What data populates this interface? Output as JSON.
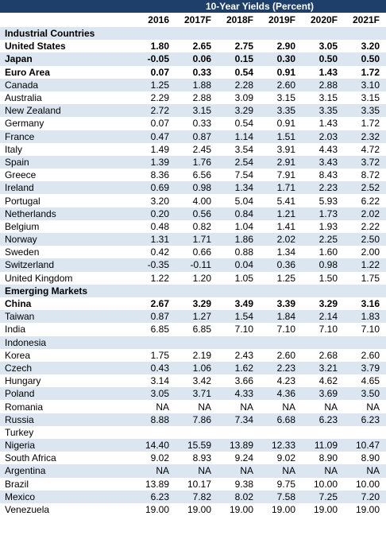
{
  "table": {
    "title": "10-Year Yields (Percent)",
    "columns": [
      "2016",
      "2017F",
      "2018F",
      "2019F",
      "2020F",
      "2021F"
    ],
    "rows": [
      {
        "label": "Industrial Countries",
        "section": true,
        "values": []
      },
      {
        "label": "United States",
        "bold": true,
        "values": [
          "1.80",
          "2.65",
          "2.75",
          "2.90",
          "3.05",
          "3.20"
        ]
      },
      {
        "label": "Japan",
        "bold": true,
        "values": [
          "-0.05",
          "0.06",
          "0.15",
          "0.30",
          "0.50",
          "0.50"
        ]
      },
      {
        "label": "Euro Area",
        "bold": true,
        "values": [
          "0.07",
          "0.33",
          "0.54",
          "0.91",
          "1.43",
          "1.72"
        ]
      },
      {
        "label": "Canada",
        "values": [
          "1.25",
          "1.88",
          "2.28",
          "2.60",
          "2.88",
          "3.10"
        ]
      },
      {
        "label": "Australia",
        "values": [
          "2.29",
          "2.88",
          "3.09",
          "3.15",
          "3.15",
          "3.15"
        ]
      },
      {
        "label": "New Zealand",
        "values": [
          "2.72",
          "3.15",
          "3.29",
          "3.35",
          "3.35",
          "3.35"
        ]
      },
      {
        "label": "Germany",
        "values": [
          "0.07",
          "0.33",
          "0.54",
          "0.91",
          "1.43",
          "1.72"
        ]
      },
      {
        "label": "France",
        "values": [
          "0.47",
          "0.87",
          "1.14",
          "1.51",
          "2.03",
          "2.32"
        ]
      },
      {
        "label": "Italy",
        "values": [
          "1.49",
          "2.45",
          "3.54",
          "3.91",
          "4.43",
          "4.72"
        ]
      },
      {
        "label": "Spain",
        "values": [
          "1.39",
          "1.76",
          "2.54",
          "2.91",
          "3.43",
          "3.72"
        ]
      },
      {
        "label": "Greece",
        "values": [
          "8.36",
          "6.56",
          "7.54",
          "7.91",
          "8.43",
          "8.72"
        ]
      },
      {
        "label": "Ireland",
        "values": [
          "0.69",
          "0.98",
          "1.34",
          "1.71",
          "2.23",
          "2.52"
        ]
      },
      {
        "label": "Portugal",
        "values": [
          "3.20",
          "4.00",
          "5.04",
          "5.41",
          "5.93",
          "6.22"
        ]
      },
      {
        "label": "Netherlands",
        "values": [
          "0.20",
          "0.56",
          "0.84",
          "1.21",
          "1.73",
          "2.02"
        ]
      },
      {
        "label": "Belgium",
        "values": [
          "0.48",
          "0.82",
          "1.04",
          "1.41",
          "1.93",
          "2.22"
        ]
      },
      {
        "label": "Norway",
        "values": [
          "1.31",
          "1.71",
          "1.86",
          "2.02",
          "2.25",
          "2.50"
        ]
      },
      {
        "label": "Sweden",
        "values": [
          "0.42",
          "0.66",
          "0.88",
          "1.34",
          "1.60",
          "2.00"
        ]
      },
      {
        "label": "Switzerland",
        "values": [
          "-0.35",
          "-0.11",
          "0.04",
          "0.36",
          "0.98",
          "1.22"
        ]
      },
      {
        "label": "United Kingdom",
        "values": [
          "1.22",
          "1.20",
          "1.05",
          "1.25",
          "1.50",
          "1.75"
        ]
      },
      {
        "label": "Emerging Markets",
        "section": true,
        "values": []
      },
      {
        "label": "China",
        "bold": true,
        "values": [
          "2.67",
          "3.29",
          "3.49",
          "3.39",
          "3.29",
          "3.16"
        ]
      },
      {
        "label": "Taiwan",
        "values": [
          "0.87",
          "1.27",
          "1.54",
          "1.84",
          "2.14",
          "1.83"
        ]
      },
      {
        "label": "India",
        "values": [
          "6.85",
          "6.85",
          "7.10",
          "7.10",
          "7.10",
          "7.10"
        ]
      },
      {
        "label": "Indonesia",
        "values": []
      },
      {
        "label": "Korea",
        "values": [
          "1.75",
          "2.19",
          "2.43",
          "2.60",
          "2.68",
          "2.60"
        ]
      },
      {
        "label": "Czech",
        "values": [
          "0.43",
          "1.06",
          "1.62",
          "2.23",
          "3.21",
          "3.79"
        ]
      },
      {
        "label": "Hungary",
        "values": [
          "3.14",
          "3.42",
          "3.66",
          "4.23",
          "4.62",
          "4.65"
        ]
      },
      {
        "label": "Poland",
        "values": [
          "3.05",
          "3.71",
          "4.33",
          "4.36",
          "3.69",
          "3.50"
        ]
      },
      {
        "label": "Romania",
        "values": [
          "NA",
          "NA",
          "NA",
          "NA",
          "NA",
          "NA"
        ]
      },
      {
        "label": "Russia",
        "values": [
          "8.88",
          "7.86",
          "7.34",
          "6.68",
          "6.23",
          "6.23"
        ]
      },
      {
        "label": "Turkey",
        "values": []
      },
      {
        "label": "Nigeria",
        "values": [
          "14.40",
          "15.59",
          "13.89",
          "12.33",
          "11.09",
          "10.47"
        ]
      },
      {
        "label": "South Africa",
        "values": [
          "9.02",
          "8.93",
          "9.24",
          "9.02",
          "8.90",
          "8.90"
        ]
      },
      {
        "label": "Argentina",
        "values": [
          "NA",
          "NA",
          "NA",
          "NA",
          "NA",
          "NA"
        ]
      },
      {
        "label": "Brazil",
        "values": [
          "13.89",
          "10.17",
          "9.38",
          "9.75",
          "10.00",
          "10.00"
        ]
      },
      {
        "label": "Mexico",
        "values": [
          "6.23",
          "7.82",
          "8.02",
          "7.58",
          "7.25",
          "7.20"
        ]
      },
      {
        "label": "Venezuela",
        "values": [
          "19.00",
          "19.00",
          "19.00",
          "19.00",
          "19.00",
          "19.00"
        ]
      }
    ]
  }
}
